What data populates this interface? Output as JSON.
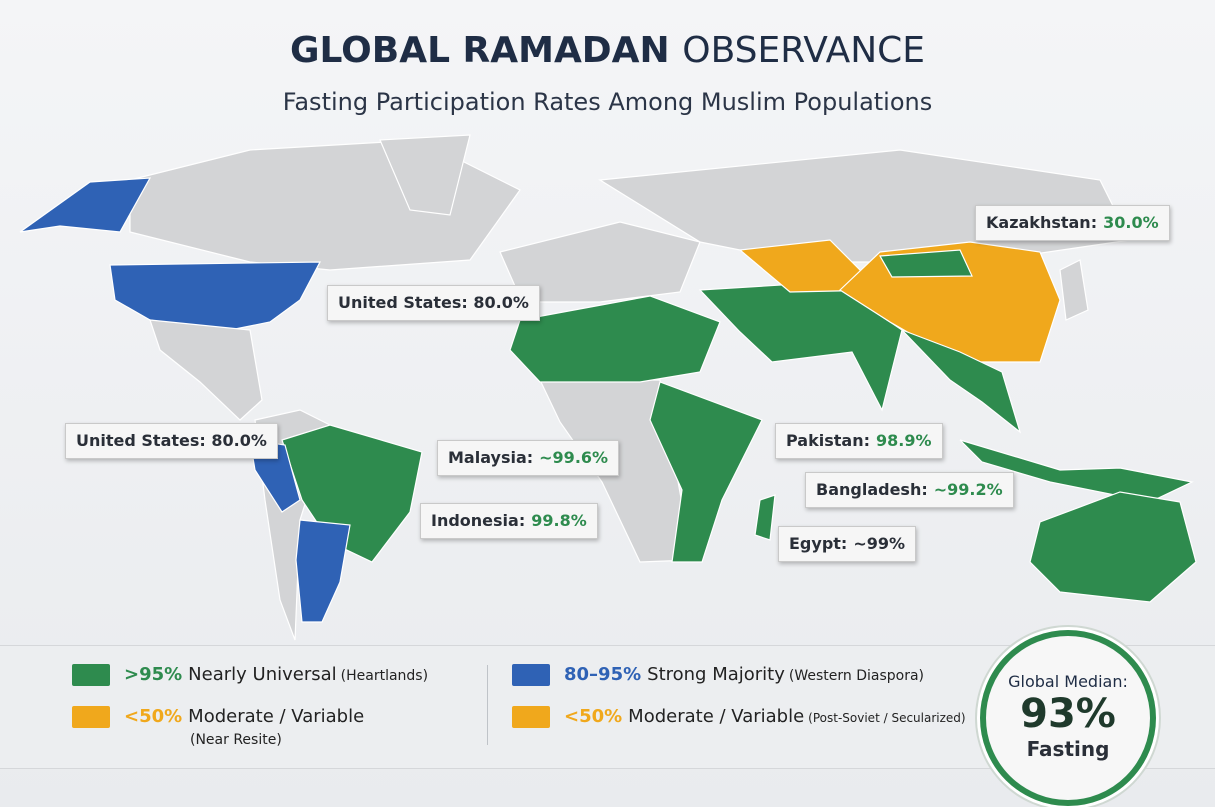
{
  "header": {
    "title_bold": "GLOBAL RAMADAN",
    "title_light": "OBSERVANCE",
    "subtitle": "Fasting Participation Rates Among Muslim Populations"
  },
  "callouts": [
    {
      "label": "Kazakhstan:",
      "value": "30.0%"
    },
    {
      "label": "United States: 80.0%",
      "value": ""
    },
    {
      "label": "United States: 80.0%",
      "value": ""
    },
    {
      "label": "Malaysia:",
      "value": "~99.6%"
    },
    {
      "label": "Pakistan:",
      "value": "98.9%"
    },
    {
      "label": "Indonesia:",
      "value": "99.8%"
    },
    {
      "label": "Bangladesh:",
      "value": "~99.2%"
    },
    {
      "label": "Egypt:",
      "value": "~99%"
    }
  ],
  "legend": [
    {
      "range": ">95%",
      "label": "Nearly Universal",
      "note": "(Heartlands)"
    },
    {
      "range": "80–95%",
      "label": "Strong Majority",
      "note": "(Western Diaspora)"
    },
    {
      "range": "<50%",
      "label": "Moderate / Variable",
      "note": "(Near Resite)"
    },
    {
      "range": "<50%",
      "label": "Moderate / Variable",
      "note": "(Post-Soviet / Secularized)"
    }
  ],
  "badge": {
    "caption": "Global Median:",
    "value": "93%",
    "footer": "Fasting"
  }
}
